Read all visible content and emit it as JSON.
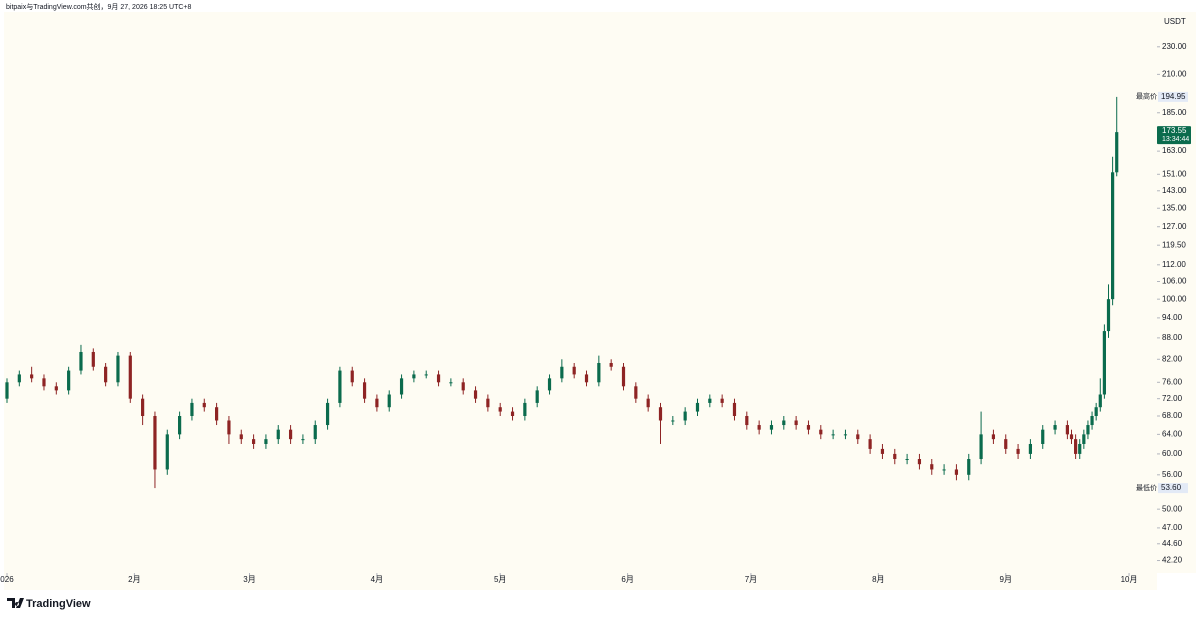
{
  "header": "bitpaix与TradingView.com共创，9月 27, 2026 18:25 UTC+8",
  "logo": "TradingView",
  "chart_data": {
    "type": "candlestick",
    "y_unit": "USDT",
    "log_scale": true,
    "background": "#fefcf3",
    "up_color": "#0b6b4d",
    "down_color": "#8e2424",
    "xlim": [
      -1.7,
      279.8
    ],
    "xticks": [
      {
        "value": 0,
        "label": "026"
      },
      {
        "value": 31,
        "label": "2月"
      },
      {
        "value": 59,
        "label": "3月"
      },
      {
        "value": 90,
        "label": "4月"
      },
      {
        "value": 120,
        "label": "5月"
      },
      {
        "value": 151,
        "label": "6月"
      },
      {
        "value": 181,
        "label": "7月"
      },
      {
        "value": 212,
        "label": "8月"
      },
      {
        "value": 243,
        "label": "9月"
      },
      {
        "value": 273,
        "label": "10月"
      }
    ],
    "ylim": [
      40.5,
      258
    ],
    "yticks": [
      {
        "value": 230,
        "label": "230.00"
      },
      {
        "value": 210,
        "label": "210.00"
      },
      {
        "value": 185,
        "label": "185.00"
      },
      {
        "value": 163,
        "label": "163.00"
      },
      {
        "value": 151,
        "label": "151.00"
      },
      {
        "value": 143,
        "label": "143.00"
      },
      {
        "value": 135,
        "label": "135.00"
      },
      {
        "value": 127,
        "label": "127.00"
      },
      {
        "value": 119.5,
        "label": "119.50"
      },
      {
        "value": 112,
        "label": "112.00"
      },
      {
        "value": 106,
        "label": "106.00"
      },
      {
        "value": 100,
        "label": "100.00"
      },
      {
        "value": 94,
        "label": "94.00"
      },
      {
        "value": 88,
        "label": "88.00"
      },
      {
        "value": 82,
        "label": "82.00"
      },
      {
        "value": 76,
        "label": "76.00"
      },
      {
        "value": 72,
        "label": "72.00"
      },
      {
        "value": 68,
        "label": "68.00"
      },
      {
        "value": 64,
        "label": "64.00"
      },
      {
        "value": 60,
        "label": "60.00"
      },
      {
        "value": 56,
        "label": "56.00"
      },
      {
        "value": 50,
        "label": "50.00"
      },
      {
        "value": 47,
        "label": "47.00"
      },
      {
        "value": 44.6,
        "label": "44.60"
      },
      {
        "value": 42.2,
        "label": "42.20"
      }
    ],
    "x": [
      0,
      3,
      6,
      9,
      12,
      15,
      18,
      21,
      24,
      27,
      30,
      33,
      36,
      39,
      42,
      45,
      48,
      51,
      54,
      57,
      60,
      63,
      66,
      69,
      72,
      75,
      78,
      81,
      84,
      87,
      90,
      93,
      96,
      99,
      102,
      105,
      108,
      111,
      114,
      117,
      120,
      123,
      126,
      129,
      132,
      135,
      138,
      141,
      144,
      147,
      150,
      153,
      156,
      159,
      162,
      165,
      168,
      171,
      174,
      177,
      180,
      183,
      186,
      189,
      192,
      195,
      198,
      201,
      204,
      207,
      210,
      213,
      216,
      219,
      222,
      225,
      228,
      231,
      234,
      237,
      240,
      243,
      246,
      249,
      252,
      255,
      258,
      259,
      260,
      261,
      262,
      263,
      264,
      265,
      266,
      267,
      268,
      269,
      270
    ],
    "open": [
      72,
      76,
      78,
      77,
      75,
      74,
      79,
      84,
      80,
      76,
      83,
      72,
      68,
      57,
      64,
      68,
      71,
      70,
      67,
      64,
      63,
      62,
      63,
      65,
      63,
      63,
      66,
      71,
      79,
      76,
      72,
      70,
      73,
      77,
      78,
      78,
      76,
      76,
      74,
      72,
      70,
      69,
      68,
      71,
      74,
      77,
      80,
      78,
      76,
      81,
      80,
      75,
      72,
      70,
      67,
      67,
      69,
      71,
      72,
      71,
      68,
      66,
      65,
      66,
      67,
      66,
      65,
      64,
      64,
      64,
      63,
      61,
      60,
      59,
      59,
      58,
      57,
      57,
      56,
      59,
      64,
      63,
      61,
      60,
      62,
      65,
      66,
      64,
      63,
      60,
      62,
      64,
      66,
      68,
      70,
      73,
      90,
      100,
      152
    ],
    "high": [
      77,
      79,
      80,
      78,
      76,
      80,
      86,
      85,
      81,
      84,
      84,
      73,
      69,
      65,
      69,
      72,
      72,
      71,
      68,
      65,
      64,
      64,
      66,
      66,
      64,
      67,
      72,
      80,
      80,
      77,
      73,
      74,
      78,
      79,
      79,
      79,
      77,
      77,
      75,
      73,
      71,
      70,
      72,
      75,
      78,
      82,
      81,
      79,
      83,
      82,
      81,
      76,
      73,
      71,
      68,
      70,
      72,
      73,
      73,
      72,
      69,
      67,
      67,
      68,
      68,
      67,
      66,
      65,
      65,
      65,
      64,
      62,
      61,
      60,
      60,
      59,
      58,
      58,
      60,
      69,
      65,
      64,
      62,
      63,
      66,
      67,
      67,
      65,
      64,
      63,
      65,
      67,
      69,
      71,
      77,
      92,
      105,
      160,
      194.95
    ],
    "low": [
      71,
      75,
      76,
      74,
      73,
      73,
      78,
      79,
      75,
      75,
      71,
      66,
      53.6,
      56,
      63,
      67,
      69,
      66,
      62,
      62,
      61,
      61,
      62,
      62,
      62,
      62,
      65,
      70,
      75,
      71,
      69,
      69,
      72,
      76,
      77,
      75,
      75,
      73,
      71,
      69,
      68,
      67,
      67,
      70,
      73,
      76,
      77,
      75,
      75,
      79,
      74,
      71,
      69,
      62,
      66,
      66,
      68,
      70,
      70,
      67,
      65,
      64,
      64,
      65,
      65,
      64,
      63,
      63,
      63,
      62,
      60,
      59,
      58,
      58,
      57,
      56,
      56,
      55,
      55,
      58,
      62,
      60,
      59,
      59,
      61,
      64,
      63,
      62,
      59,
      59,
      61,
      63,
      65,
      67,
      69,
      72,
      88,
      98,
      150
    ],
    "close": [
      76,
      78,
      77,
      75,
      74,
      79,
      84,
      80,
      76,
      83,
      72,
      68,
      57,
      64,
      68,
      71,
      70,
      67,
      64,
      63,
      62,
      63,
      65,
      63,
      63,
      66,
      71,
      79,
      76,
      72,
      70,
      73,
      77,
      78,
      78,
      76,
      76,
      74,
      72,
      70,
      69,
      68,
      71,
      74,
      77,
      80,
      78,
      76,
      81,
      80,
      75,
      72,
      70,
      67,
      67,
      69,
      71,
      72,
      71,
      68,
      66,
      65,
      66,
      67,
      66,
      65,
      64,
      64,
      64,
      63,
      61,
      60,
      59,
      59,
      58,
      57,
      57,
      56,
      59,
      64,
      63,
      61,
      60,
      62,
      65,
      66,
      64,
      63,
      60,
      62,
      64,
      66,
      68,
      70,
      73,
      90,
      100,
      152,
      173.55
    ],
    "high_marker": {
      "label": "最高价",
      "value": 194.95
    },
    "low_marker": {
      "label": "最低价",
      "value": {
        "value": 53.6,
        "label": "53.60"
      }
    },
    "last_price": {
      "value": 173.55,
      "countdown": "13:34:44",
      "color": "#0b6b4d"
    }
  }
}
